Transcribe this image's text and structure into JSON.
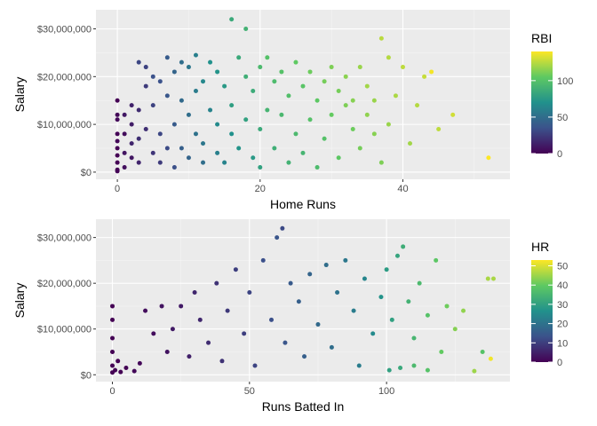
{
  "palette": [
    "#440154",
    "#3b528b",
    "#21918c",
    "#5ec962",
    "#fde725"
  ],
  "chart_data": [
    {
      "type": "scatter",
      "xlabel": "Home Runs",
      "ylabel": "Salary",
      "xlim": [
        -3,
        55
      ],
      "ylim": [
        -1500000,
        34000000
      ],
      "x_ticks": [
        0,
        20,
        40
      ],
      "x_tick_labels": [
        "0",
        "20",
        "40"
      ],
      "y_ticks": [
        0,
        10000000,
        20000000,
        30000000
      ],
      "y_tick_labels": [
        "$0",
        "$10,000,000",
        "$20,000,000",
        "$30,000,000"
      ],
      "color_by": "RBI",
      "legend": {
        "title": "RBI",
        "range": [
          0,
          140
        ],
        "ticks": [
          0,
          50,
          100
        ],
        "tick_labels": [
          "0",
          "50",
          "100"
        ]
      },
      "grid": true,
      "points": [
        [
          0,
          15000000,
          0
        ],
        [
          0,
          12000000,
          2
        ],
        [
          0,
          8000000,
          1
        ],
        [
          0,
          5000000,
          0
        ],
        [
          0,
          2000000,
          0
        ],
        [
          0,
          500000,
          0
        ],
        [
          0,
          200000,
          1
        ],
        [
          0,
          11000000,
          3
        ],
        [
          0,
          6500000,
          2
        ],
        [
          0,
          3500000,
          0
        ],
        [
          1,
          8000000,
          5
        ],
        [
          1,
          4000000,
          8
        ],
        [
          1,
          1000000,
          6
        ],
        [
          1,
          12000000,
          10
        ],
        [
          2,
          10000000,
          12
        ],
        [
          2,
          3000000,
          9
        ],
        [
          2,
          6000000,
          15
        ],
        [
          2,
          14000000,
          14
        ],
        [
          3,
          13000000,
          18
        ],
        [
          3,
          2000000,
          15
        ],
        [
          3,
          7000000,
          20
        ],
        [
          3,
          23000000,
          30
        ],
        [
          4,
          9000000,
          20
        ],
        [
          4,
          18000000,
          25
        ],
        [
          4,
          22000000,
          28
        ],
        [
          5,
          14000000,
          28
        ],
        [
          5,
          4000000,
          22
        ],
        [
          5,
          20000000,
          35
        ],
        [
          6,
          19000000,
          35
        ],
        [
          6,
          8000000,
          30
        ],
        [
          6,
          2000000,
          25
        ],
        [
          7,
          24000000,
          40
        ],
        [
          7,
          16000000,
          38
        ],
        [
          7,
          5000000,
          32
        ],
        [
          8,
          21000000,
          45
        ],
        [
          8,
          10000000,
          40
        ],
        [
          8,
          1000000,
          34
        ],
        [
          9,
          15000000,
          48
        ],
        [
          9,
          5000000,
          42
        ],
        [
          9,
          23000000,
          50
        ],
        [
          10,
          22000000,
          55
        ],
        [
          10,
          12000000,
          50
        ],
        [
          10,
          3000000,
          45
        ],
        [
          11,
          24500000,
          60
        ],
        [
          11,
          8000000,
          52
        ],
        [
          11,
          17000000,
          58
        ],
        [
          12,
          19000000,
          65
        ],
        [
          12,
          6000000,
          55
        ],
        [
          12,
          2000000,
          50
        ],
        [
          13,
          23000000,
          70
        ],
        [
          13,
          13000000,
          62
        ],
        [
          14,
          21000000,
          72
        ],
        [
          14,
          4000000,
          60
        ],
        [
          14,
          10000000,
          66
        ],
        [
          15,
          18000000,
          75
        ],
        [
          15,
          2000000,
          62
        ],
        [
          16,
          32000000,
          85
        ],
        [
          16,
          14000000,
          78
        ],
        [
          16,
          8000000,
          70
        ],
        [
          17,
          24000000,
          85
        ],
        [
          17,
          5000000,
          72
        ],
        [
          18,
          30000000,
          90
        ],
        [
          18,
          20000000,
          88
        ],
        [
          18,
          11000000,
          80
        ],
        [
          19,
          17000000,
          86
        ],
        [
          19,
          3000000,
          75
        ],
        [
          20,
          22000000,
          95
        ],
        [
          20,
          9000000,
          85
        ],
        [
          20,
          1000000,
          80
        ],
        [
          21,
          13000000,
          92
        ],
        [
          21,
          24000000,
          100
        ],
        [
          22,
          19000000,
          96
        ],
        [
          22,
          5000000,
          88
        ],
        [
          23,
          21000000,
          100
        ],
        [
          23,
          12000000,
          94
        ],
        [
          24,
          16000000,
          98
        ],
        [
          24,
          2000000,
          90
        ],
        [
          25,
          23000000,
          105
        ],
        [
          25,
          8000000,
          95
        ],
        [
          26,
          18000000,
          102
        ],
        [
          26,
          4000000,
          92
        ],
        [
          27,
          21000000,
          108
        ],
        [
          27,
          11000000,
          100
        ],
        [
          28,
          15000000,
          104
        ],
        [
          28,
          1000000,
          96
        ],
        [
          29,
          19000000,
          110
        ],
        [
          29,
          7000000,
          100
        ],
        [
          30,
          22000000,
          112
        ],
        [
          30,
          12000000,
          106
        ],
        [
          31,
          17000000,
          110
        ],
        [
          31,
          3000000,
          104
        ],
        [
          32,
          14000000,
          112
        ],
        [
          32,
          20000000,
          115
        ],
        [
          33,
          9000000,
          108
        ],
        [
          33,
          15000000,
          114
        ],
        [
          34,
          22000000,
          118
        ],
        [
          34,
          5000000,
          110
        ],
        [
          35,
          12000000,
          116
        ],
        [
          35,
          18000000,
          120
        ],
        [
          36,
          8000000,
          114
        ],
        [
          36,
          15000000,
          118
        ],
        [
          37,
          28000000,
          125
        ],
        [
          37,
          2000000,
          112
        ],
        [
          38,
          24000000,
          124
        ],
        [
          38,
          10000000,
          118
        ],
        [
          39,
          16000000,
          122
        ],
        [
          40,
          22000000,
          126
        ],
        [
          41,
          6000000,
          120
        ],
        [
          42,
          14000000,
          124
        ],
        [
          43,
          20000000,
          128
        ],
        [
          44,
          21000000,
          138
        ],
        [
          45,
          9000000,
          126
        ],
        [
          47,
          12000000,
          130
        ],
        [
          52,
          3000000,
          140
        ]
      ]
    },
    {
      "type": "scatter",
      "xlabel": "Runs Batted In",
      "ylabel": "Salary",
      "xlim": [
        -6,
        145
      ],
      "ylim": [
        -1500000,
        34000000
      ],
      "x_ticks": [
        0,
        50,
        100
      ],
      "x_tick_labels": [
        "0",
        "50",
        "100"
      ],
      "y_ticks": [
        0,
        10000000,
        20000000,
        30000000
      ],
      "y_tick_labels": [
        "$0",
        "$10,000,000",
        "$20,000,000",
        "$30,000,000"
      ],
      "color_by": "HR",
      "legend": {
        "title": "HR",
        "range": [
          0,
          53
        ],
        "ticks": [
          0,
          10,
          20,
          30,
          40,
          50
        ],
        "tick_labels": [
          "0",
          "10",
          "20",
          "30",
          "40",
          "50"
        ]
      },
      "grid": true,
      "points": [
        [
          0,
          15000000,
          0
        ],
        [
          0,
          12000000,
          0
        ],
        [
          0,
          8000000,
          0
        ],
        [
          0,
          5000000,
          0
        ],
        [
          0,
          2000000,
          0
        ],
        [
          0,
          500000,
          0
        ],
        [
          1,
          1000000,
          0
        ],
        [
          2,
          3000000,
          0
        ],
        [
          3,
          600000,
          0
        ],
        [
          5,
          1500000,
          0
        ],
        [
          8,
          800000,
          1
        ],
        [
          10,
          2500000,
          1
        ],
        [
          12,
          14000000,
          2
        ],
        [
          15,
          9000000,
          2
        ],
        [
          18,
          15000000,
          3
        ],
        [
          20,
          5000000,
          3
        ],
        [
          22,
          10000000,
          4
        ],
        [
          25,
          15000000,
          4
        ],
        [
          28,
          4000000,
          5
        ],
        [
          30,
          18000000,
          6
        ],
        [
          32,
          12000000,
          6
        ],
        [
          35,
          7000000,
          7
        ],
        [
          38,
          20000000,
          8
        ],
        [
          40,
          3000000,
          8
        ],
        [
          42,
          14000000,
          9
        ],
        [
          45,
          23000000,
          10
        ],
        [
          48,
          9000000,
          10
        ],
        [
          50,
          18000000,
          11
        ],
        [
          52,
          2000000,
          11
        ],
        [
          55,
          25000000,
          13
        ],
        [
          58,
          12000000,
          13
        ],
        [
          60,
          30000000,
          14
        ],
        [
          62,
          32000000,
          12
        ],
        [
          63,
          7000000,
          14
        ],
        [
          65,
          20000000,
          15
        ],
        [
          68,
          16000000,
          16
        ],
        [
          70,
          4000000,
          16
        ],
        [
          72,
          22000000,
          17
        ],
        [
          75,
          11000000,
          18
        ],
        [
          78,
          24000000,
          19
        ],
        [
          80,
          6000000,
          19
        ],
        [
          82,
          18000000,
          20
        ],
        [
          85,
          25000000,
          21
        ],
        [
          88,
          14000000,
          22
        ],
        [
          90,
          2000000,
          22
        ],
        [
          92,
          21000000,
          24
        ],
        [
          95,
          9000000,
          25
        ],
        [
          98,
          17000000,
          27
        ],
        [
          100,
          23000000,
          29
        ],
        [
          102,
          12000000,
          30
        ],
        [
          104,
          26000000,
          31
        ],
        [
          106,
          28000000,
          33
        ],
        [
          108,
          16000000,
          34
        ],
        [
          110,
          8000000,
          35
        ],
        [
          112,
          20000000,
          36
        ],
        [
          115,
          13000000,
          38
        ],
        [
          118,
          25000000,
          39
        ],
        [
          120,
          5000000,
          40
        ],
        [
          122,
          15000000,
          41
        ],
        [
          125,
          10000000,
          43
        ],
        [
          128,
          14000000,
          44
        ],
        [
          132,
          800000,
          45
        ],
        [
          135,
          5000000,
          38
        ],
        [
          137,
          21000000,
          46
        ],
        [
          139,
          21000000,
          46
        ],
        [
          138,
          3500000,
          52
        ],
        [
          101,
          1000000,
          30
        ],
        [
          105,
          1500000,
          32
        ],
        [
          110,
          2000000,
          36
        ],
        [
          115,
          1000000,
          38
        ]
      ]
    }
  ]
}
